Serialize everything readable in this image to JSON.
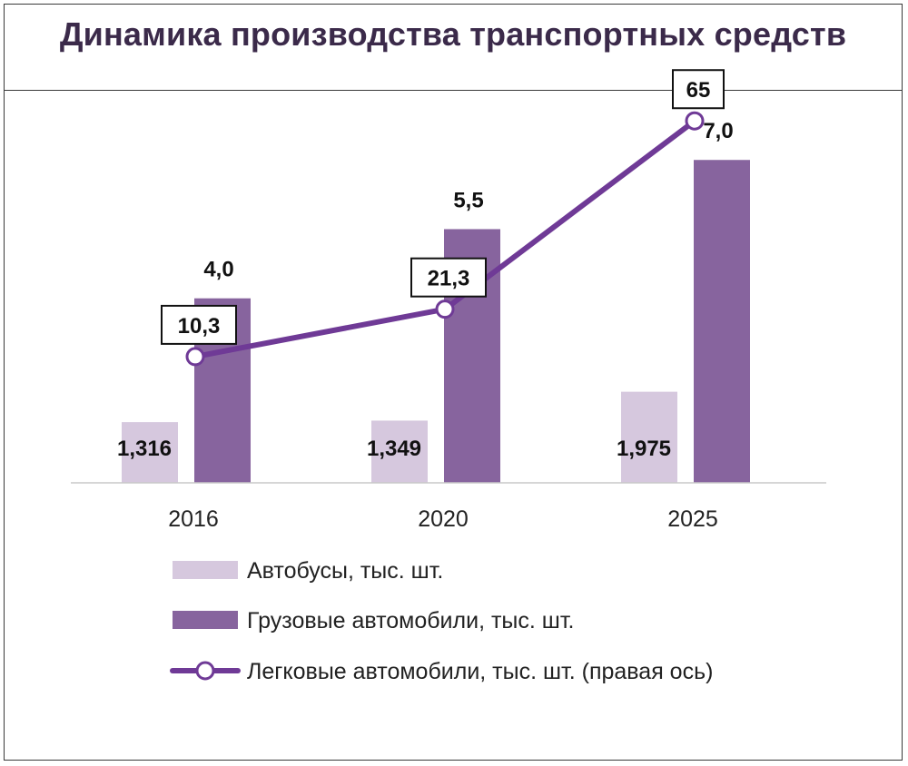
{
  "title": "Динамика производства транспортных средств",
  "colors": {
    "buses": "#d6c8de",
    "trucks": "#87649e",
    "cars": "#6f3a96",
    "title": "#3b2a4a"
  },
  "chart_data": {
    "type": "bar",
    "title": "Динамика производства транспортных средств",
    "categories": [
      "2016",
      "2020",
      "2025"
    ],
    "series": [
      {
        "name": "Автобусы, тыс. шт.",
        "type": "bar",
        "axis": "left",
        "values": [
          1.316,
          1.349,
          1.975
        ],
        "labels": [
          "1,316",
          "1,349",
          "1,975"
        ]
      },
      {
        "name": "Грузовые автомобили, тыс. шт.",
        "type": "bar",
        "axis": "left",
        "values": [
          4.0,
          5.5,
          7.0
        ],
        "labels": [
          "4,0",
          "5,5",
          "7,0"
        ]
      },
      {
        "name": "Легковые автомобили, тыс. шт. (правая ось)",
        "type": "line",
        "axis": "right",
        "values": [
          10.3,
          21.3,
          65
        ],
        "labels": [
          "10,3",
          "21,3",
          "65"
        ]
      }
    ],
    "left_axis_range": [
      0,
      8.5
    ],
    "right_axis_range": [
      -19,
      72
    ],
    "grid": false,
    "legend_position": "bottom"
  }
}
